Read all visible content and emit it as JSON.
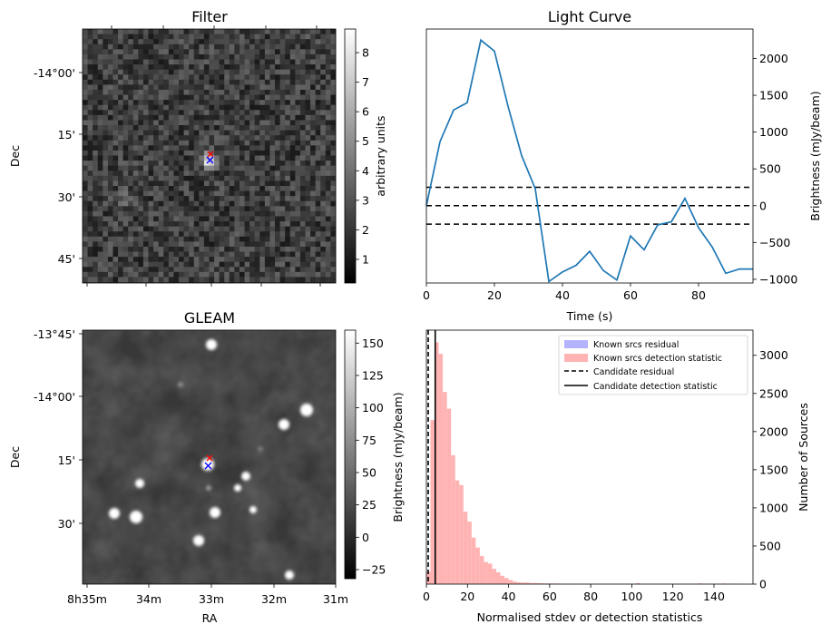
{
  "figure": {
    "panels": {
      "filter": {
        "title": "Filter",
        "ylabel": "Dec",
        "yticks": [
          "-14°00'",
          "15'",
          "30'",
          "45'"
        ],
        "colorbar": {
          "label": "arbitrary units",
          "ticks": [
            "1",
            "2",
            "3",
            "4",
            "5",
            "6",
            "7",
            "8"
          ],
          "range": [
            0.2,
            8.8
          ],
          "colormap": "gray"
        },
        "markers": [
          {
            "symbol": "x",
            "color": "#ff0000"
          },
          {
            "symbol": "x",
            "color": "#0000ff"
          }
        ]
      },
      "gleam": {
        "title": "GLEAM",
        "xlabel": "RA",
        "ylabel": "Dec",
        "yticks": [
          "-13°45'",
          "-14°00'",
          "15'",
          "30'"
        ],
        "xticks": [
          "8h35m",
          "34m",
          "33m",
          "32m",
          "31m"
        ],
        "colorbar": {
          "label": "Brightness (mJy/beam)",
          "ticks": [
            "−25",
            "0",
            "25",
            "50",
            "75",
            "100",
            "125",
            "150"
          ],
          "range": [
            -32,
            160
          ],
          "colormap": "gray"
        },
        "markers": [
          {
            "symbol": "x",
            "color": "#ff0000"
          },
          {
            "symbol": "x",
            "color": "#0000ff"
          }
        ]
      }
    }
  },
  "chart_data": [
    {
      "type": "line",
      "title": "Light Curve",
      "xlabel": "Time (s)",
      "ylabel": "Brightness (mJy/beam)",
      "xlim": [
        0,
        96
      ],
      "ylim": [
        -1050,
        2400
      ],
      "xticks": [
        0,
        20,
        40,
        60,
        80
      ],
      "yticks": [
        -1000,
        -500,
        0,
        500,
        1000,
        1500,
        2000
      ],
      "ytick_side": "right",
      "series": [
        {
          "color": "#1f77b4",
          "x": [
            0,
            4,
            8,
            12,
            16,
            20,
            24,
            28,
            32,
            36,
            40,
            44,
            48,
            52,
            56,
            60,
            64,
            68,
            72,
            76,
            80,
            84,
            88,
            92,
            96
          ],
          "y": [
            0,
            870,
            1300,
            1400,
            2250,
            2100,
            1350,
            680,
            230,
            -1030,
            -900,
            -810,
            -620,
            -880,
            -1010,
            -410,
            -600,
            -260,
            -220,
            100,
            -300,
            -560,
            -920,
            -860,
            -860
          ]
        }
      ],
      "hlines": [
        {
          "y": 250,
          "style": "dashed",
          "color": "#000000"
        },
        {
          "y": 0,
          "style": "dashed",
          "color": "#000000"
        },
        {
          "y": -250,
          "style": "dashed",
          "color": "#000000"
        }
      ]
    },
    {
      "type": "bar",
      "title": "",
      "xlabel": "Normalised stdev or detection statistics",
      "ylabel": "Number of Sources",
      "xlim": [
        0,
        159
      ],
      "ylim": [
        0,
        3330
      ],
      "xticks": [
        0,
        20,
        40,
        60,
        80,
        100,
        120,
        140
      ],
      "yticks": [
        0,
        500,
        1000,
        1500,
        2000,
        2500,
        3000
      ],
      "ytick_side": "right",
      "legend_placement": "top-right",
      "legend": [
        {
          "label": "Known srcs residual",
          "kind": "patch",
          "color": "#b3b3ff"
        },
        {
          "label": "Known srcs detection statistic",
          "kind": "patch",
          "color": "#ffb3b3"
        },
        {
          "label": "Candidate residual",
          "kind": "dashed-line",
          "color": "#000000"
        },
        {
          "label": "Candidate detection statistic",
          "kind": "solid-line",
          "color": "#000000"
        }
      ],
      "series": [
        {
          "name": "Known srcs residual",
          "color": "#b3b3ff",
          "bin_width": 2,
          "bin_start": 0,
          "values": [
            150,
            60,
            5
          ]
        },
        {
          "name": "Known srcs detection statistic",
          "color": "#ffb3b3",
          "bin_width": 2,
          "bin_start": 0,
          "values": [
            160,
            2150,
            3170,
            3020,
            2520,
            2300,
            1690,
            1360,
            1300,
            950,
            820,
            610,
            480,
            370,
            290,
            270,
            200,
            155,
            110,
            80,
            55,
            35,
            25,
            20,
            20,
            15,
            15,
            12,
            10,
            8,
            8,
            8,
            6,
            5,
            5,
            5,
            5,
            4,
            4,
            4,
            3,
            3,
            3,
            3,
            3,
            2,
            2,
            2,
            2,
            2,
            2,
            12,
            2,
            2,
            2,
            2,
            2,
            2,
            2,
            2,
            2,
            2,
            2,
            2,
            2,
            2,
            10,
            2,
            2,
            2,
            2,
            2,
            8,
            2,
            2,
            2,
            2
          ]
        }
      ],
      "vlines": [
        {
          "name": "Candidate residual",
          "x": 0.9,
          "style": "dashed",
          "color": "#000000"
        },
        {
          "name": "Candidate detection statistic",
          "x": 4.3,
          "style": "solid",
          "color": "#000000"
        }
      ]
    }
  ]
}
